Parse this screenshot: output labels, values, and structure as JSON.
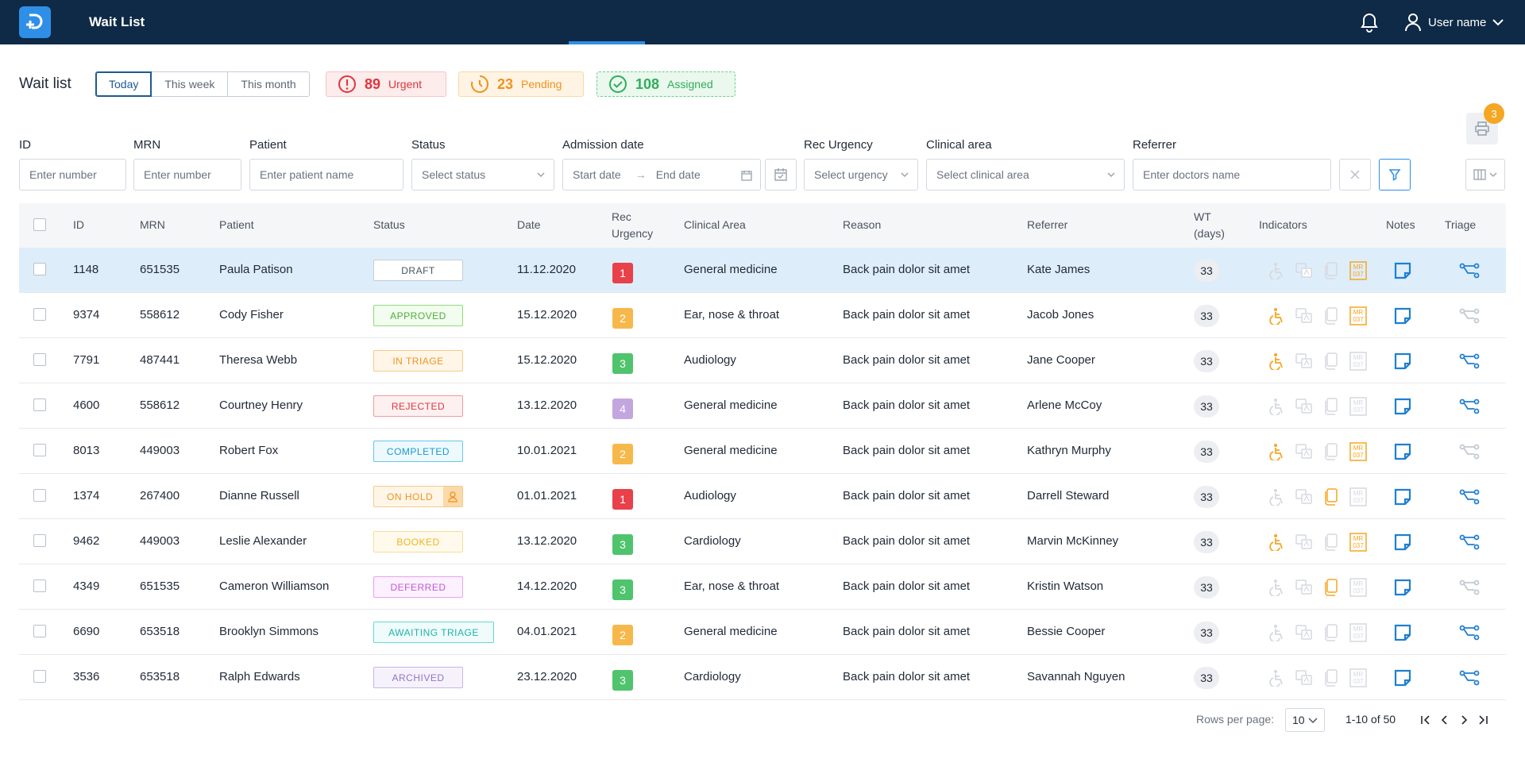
{
  "app": {
    "title": "Wait List",
    "user_name": "User name"
  },
  "header": {
    "title": "Wait list",
    "periods": [
      "Today",
      "This week",
      "This month"
    ],
    "active_period": "Today",
    "stats": {
      "urgent": {
        "count": "89",
        "label": "Urgent"
      },
      "pending": {
        "count": "23",
        "label": "Pending"
      },
      "assigned": {
        "count": "108",
        "label": "Assigned"
      }
    },
    "print_badge": "3"
  },
  "filters": {
    "id": {
      "label": "ID",
      "placeholder": "Enter number"
    },
    "mrn": {
      "label": "MRN",
      "placeholder": "Enter number"
    },
    "patient": {
      "label": "Patient",
      "placeholder": "Enter patient name"
    },
    "status": {
      "label": "Status",
      "placeholder": "Select status"
    },
    "admission": {
      "label": "Admission date",
      "start_placeholder": "Start date",
      "end_placeholder": "End date"
    },
    "urgency": {
      "label": "Rec Urgency",
      "placeholder": "Select urgency"
    },
    "clinical_area": {
      "label": "Clinical area",
      "placeholder": "Select clinical area"
    },
    "referrer": {
      "label": "Referrer",
      "placeholder": "Enter doctors name"
    }
  },
  "table": {
    "columns": {
      "id": "ID",
      "mrn": "MRN",
      "patient": "Patient",
      "status": "Status",
      "date": "Date",
      "urgency_1": "Rec",
      "urgency_2": "Urgency",
      "clinical_area": "Clinical Area",
      "reason": "Reason",
      "referrer": "Referrer",
      "wt_1": "WT",
      "wt_2": "(days)",
      "indicators": "Indicators",
      "notes": "Notes",
      "triage": "Triage"
    },
    "rows": [
      {
        "id": "1148",
        "mrn": "651535",
        "patient": "Paula Patison",
        "status": "DRAFT",
        "date": "11.12.2020",
        "urgency": "1",
        "clinical_area": "General medicine",
        "reason": "Back pain dolor sit amet",
        "referrer": "Kate James",
        "wt": "33",
        "ind": [
          false,
          false,
          false,
          true
        ],
        "triage_active": true,
        "selected": true
      },
      {
        "id": "9374",
        "mrn": "558612",
        "patient": "Cody Fisher",
        "status": "APPROVED",
        "date": "15.12.2020",
        "urgency": "2",
        "clinical_area": "Ear, nose & throat",
        "reason": "Back pain dolor sit amet",
        "referrer": "Jacob Jones",
        "wt": "33",
        "ind": [
          true,
          false,
          false,
          true
        ],
        "triage_active": false,
        "selected": false
      },
      {
        "id": "7791",
        "mrn": "487441",
        "patient": "Theresa Webb",
        "status": "IN TRIAGE",
        "date": "15.12.2020",
        "urgency": "3",
        "clinical_area": "Audiology",
        "reason": "Back pain dolor sit amet",
        "referrer": "Jane Cooper",
        "wt": "33",
        "ind": [
          true,
          false,
          false,
          false
        ],
        "triage_active": true,
        "selected": false
      },
      {
        "id": "4600",
        "mrn": "558612",
        "patient": "Courtney Henry",
        "status": "REJECTED",
        "date": "13.12.2020",
        "urgency": "4",
        "clinical_area": "General medicine",
        "reason": "Back pain dolor sit amet",
        "referrer": "Arlene McCoy",
        "wt": "33",
        "ind": [
          false,
          false,
          false,
          false
        ],
        "triage_active": true,
        "selected": false
      },
      {
        "id": "8013",
        "mrn": "449003",
        "patient": "Robert Fox",
        "status": "COMPLETED",
        "date": "10.01.2021",
        "urgency": "2",
        "clinical_area": "General medicine",
        "reason": "Back pain dolor sit amet",
        "referrer": "Kathryn Murphy",
        "wt": "33",
        "ind": [
          true,
          false,
          false,
          true
        ],
        "triage_active": false,
        "selected": false
      },
      {
        "id": "1374",
        "mrn": "267400",
        "patient": "Dianne Russell",
        "status": "ON HOLD",
        "date": "01.01.2021",
        "urgency": "1",
        "clinical_area": "Audiology",
        "reason": "Back pain dolor sit amet",
        "referrer": "Darrell Steward",
        "wt": "33",
        "ind": [
          false,
          false,
          true,
          false
        ],
        "triage_active": true,
        "selected": false
      },
      {
        "id": "9462",
        "mrn": "449003",
        "patient": "Leslie Alexander",
        "status": "BOOKED",
        "date": "13.12.2020",
        "urgency": "3",
        "clinical_area": "Cardiology",
        "reason": "Back pain dolor sit amet",
        "referrer": "Marvin McKinney",
        "wt": "33",
        "ind": [
          true,
          false,
          false,
          true
        ],
        "triage_active": true,
        "selected": false
      },
      {
        "id": "4349",
        "mrn": "651535",
        "patient": "Cameron Williamson",
        "status": "DEFERRED",
        "date": "14.12.2020",
        "urgency": "3",
        "clinical_area": "Ear, nose & throat",
        "reason": "Back pain dolor sit amet",
        "referrer": "Kristin Watson",
        "wt": "33",
        "ind": [
          false,
          false,
          true,
          false
        ],
        "triage_active": false,
        "selected": false
      },
      {
        "id": "6690",
        "mrn": "653518",
        "patient": "Brooklyn Simmons",
        "status": "AWAITING TRIAGE",
        "date": "04.01.2021",
        "urgency": "2",
        "clinical_area": "General medicine",
        "reason": "Back pain dolor sit amet",
        "referrer": "Bessie Cooper",
        "wt": "33",
        "ind": [
          false,
          false,
          false,
          false
        ],
        "triage_active": true,
        "selected": false
      },
      {
        "id": "3536",
        "mrn": "653518",
        "patient": "Ralph Edwards",
        "status": "ARCHIVED",
        "date": "23.12.2020",
        "urgency": "3",
        "clinical_area": "Cardiology",
        "reason": "Back pain dolor sit amet",
        "referrer": "Savannah Nguyen",
        "wt": "33",
        "ind": [
          false,
          false,
          false,
          false
        ],
        "triage_active": true,
        "selected": false
      }
    ]
  },
  "status_styles": {
    "DRAFT": {
      "border": "#c5ccd6",
      "color": "#4a5360",
      "bg": "#ffffff"
    },
    "APPROVED": {
      "border": "#8fdc7a",
      "color": "#4fae3b",
      "bg": "#f2fcef"
    },
    "IN TRIAGE": {
      "border": "#f7c98a",
      "color": "#f0921e",
      "bg": "#fff6e8"
    },
    "REJECTED": {
      "border": "#f39a9e",
      "color": "#e0353d",
      "bg": "#fdf0f0"
    },
    "COMPLETED": {
      "border": "#66c6e8",
      "color": "#1a9bcf",
      "bg": "#eef9fd"
    },
    "ON HOLD": {
      "border": "#f7c98a",
      "color": "#f0921e",
      "bg": "#fff6e8"
    },
    "BOOKED": {
      "border": "#f7dd9a",
      "color": "#f0b41e",
      "bg": "#fffaec"
    },
    "DEFERRED": {
      "border": "#e4a2ef",
      "color": "#c358d6",
      "bg": "#fcf1fe"
    },
    "AWAITING TRIAGE": {
      "border": "#66d9d0",
      "color": "#1fb3a8",
      "bg": "#effcfb"
    },
    "ARCHIVED": {
      "border": "#c9b4e8",
      "color": "#9472c9",
      "bg": "#f6f2fc"
    }
  },
  "urgency_colors": {
    "1": "#e8414a",
    "2": "#f7b84b",
    "3": "#4fc46d",
    "4": "#c3a6e0"
  },
  "pagination": {
    "rows_label": "Rows per page:",
    "rows_value": "10",
    "range": "1-10 of 50"
  },
  "icons": {
    "indicators": [
      "wheelchair-icon",
      "translation-icon",
      "document-icon",
      "mr037-icon"
    ],
    "notes": "note-icon",
    "triage": "triage-flow-icon"
  }
}
